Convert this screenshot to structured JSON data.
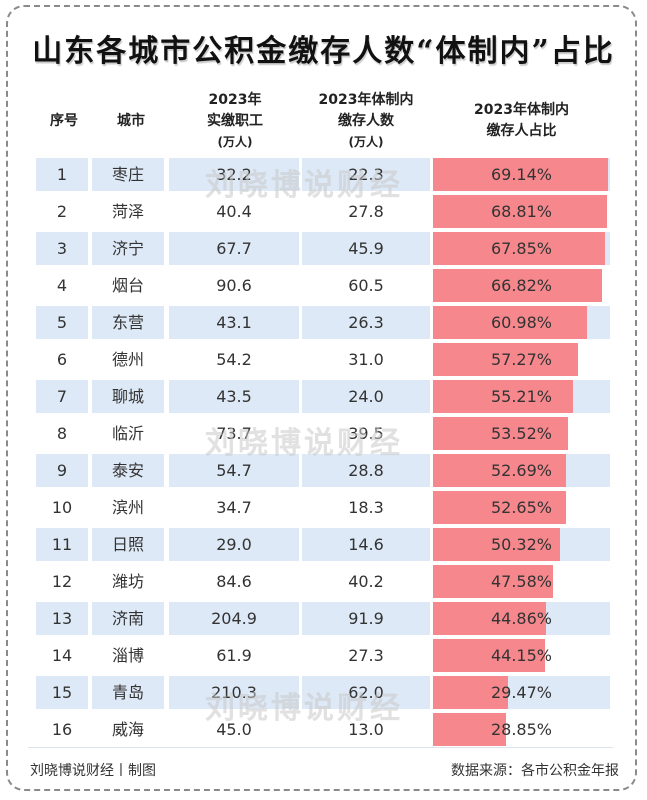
{
  "title": "山东各城市公积金缴存人数“体制内”占比",
  "headers": {
    "seq": "序号",
    "city": "城市",
    "workers": [
      "2023年",
      "实缴职工",
      "(万人)"
    ],
    "insiders": [
      "2023年体制内",
      "缴存人数",
      "(万人)"
    ],
    "ratio": [
      "2023年体制内",
      "缴存人占比"
    ]
  },
  "watermark": "刘晓博说财经",
  "footer": {
    "left": "刘晓博说财经丨制图",
    "right": "数据来源：各市公积金年报"
  },
  "colors": {
    "bar": "#f6878c",
    "row_stripe": "#dde9f6"
  },
  "chart_data": {
    "type": "table",
    "title": "山东各城市公积金缴存人数“体制内”占比",
    "columns": [
      "序号",
      "城市",
      "2023年实缴职工(万人)",
      "2023年体制内缴存人数(万人)",
      "2023年体制内缴存人占比"
    ],
    "rows": [
      {
        "seq": "1",
        "city": "枣庄",
        "workers": "32.2",
        "insiders": "22.3",
        "ratio": "69.14%",
        "ratio_value": 69.14
      },
      {
        "seq": "2",
        "city": "菏泽",
        "workers": "40.4",
        "insiders": "27.8",
        "ratio": "68.81%",
        "ratio_value": 68.81
      },
      {
        "seq": "3",
        "city": "济宁",
        "workers": "67.7",
        "insiders": "45.9",
        "ratio": "67.85%",
        "ratio_value": 67.85
      },
      {
        "seq": "4",
        "city": "烟台",
        "workers": "90.6",
        "insiders": "60.5",
        "ratio": "66.82%",
        "ratio_value": 66.82
      },
      {
        "seq": "5",
        "city": "东营",
        "workers": "43.1",
        "insiders": "26.3",
        "ratio": "60.98%",
        "ratio_value": 60.98
      },
      {
        "seq": "6",
        "city": "德州",
        "workers": "54.2",
        "insiders": "31.0",
        "ratio": "57.27%",
        "ratio_value": 57.27
      },
      {
        "seq": "7",
        "city": "聊城",
        "workers": "43.5",
        "insiders": "24.0",
        "ratio": "55.21%",
        "ratio_value": 55.21
      },
      {
        "seq": "8",
        "city": "临沂",
        "workers": "73.7",
        "insiders": "39.5",
        "ratio": "53.52%",
        "ratio_value": 53.52
      },
      {
        "seq": "9",
        "city": "泰安",
        "workers": "54.7",
        "insiders": "28.8",
        "ratio": "52.69%",
        "ratio_value": 52.69
      },
      {
        "seq": "10",
        "city": "滨州",
        "workers": "34.7",
        "insiders": "18.3",
        "ratio": "52.65%",
        "ratio_value": 52.65
      },
      {
        "seq": "11",
        "city": "日照",
        "workers": "29.0",
        "insiders": "14.6",
        "ratio": "50.32%",
        "ratio_value": 50.32
      },
      {
        "seq": "12",
        "city": "潍坊",
        "workers": "84.6",
        "insiders": "40.2",
        "ratio": "47.58%",
        "ratio_value": 47.58
      },
      {
        "seq": "13",
        "city": "济南",
        "workers": "204.9",
        "insiders": "91.9",
        "ratio": "44.86%",
        "ratio_value": 44.86
      },
      {
        "seq": "14",
        "city": "淄博",
        "workers": "61.9",
        "insiders": "27.3",
        "ratio": "44.15%",
        "ratio_value": 44.15
      },
      {
        "seq": "15",
        "city": "青岛",
        "workers": "210.3",
        "insiders": "62.0",
        "ratio": "29.47%",
        "ratio_value": 29.47
      },
      {
        "seq": "16",
        "city": "威海",
        "workers": "45.0",
        "insiders": "13.0",
        "ratio": "28.85%",
        "ratio_value": 28.85
      }
    ]
  }
}
